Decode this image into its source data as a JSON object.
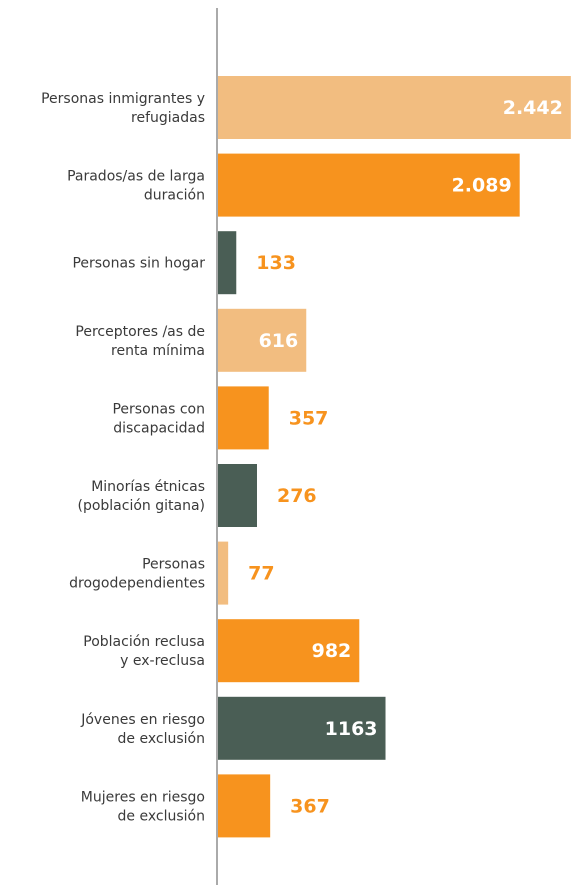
{
  "chart_data": {
    "type": "hbar",
    "categories": [
      [
        "Personas inmigrantes y",
        "refugiadas"
      ],
      [
        "Parados/as de larga",
        "duración"
      ],
      [
        "Personas sin hogar"
      ],
      [
        "Perceptores /as de",
        "renta mínima"
      ],
      [
        "Personas con",
        "discapacidad"
      ],
      [
        "Minorías étnicas",
        "(población gitana)"
      ],
      [
        "Personas",
        "drogodependientes"
      ],
      [
        "Población reclusa",
        "y ex-reclusa"
      ],
      [
        "Jóvenes en riesgo",
        "de exclusión"
      ],
      [
        "Mujeres en riesgo",
        "de exclusión"
      ]
    ],
    "values": [
      2442,
      2089,
      133,
      616,
      357,
      276,
      77,
      982,
      1163,
      367
    ],
    "value_labels": [
      "2.442",
      "2.089",
      "133",
      "616",
      "357",
      "276",
      "77",
      "982",
      "1163",
      "367"
    ],
    "colors": [
      "#f2bd80",
      "#f7931e",
      "#4a5e55",
      "#f2bd80",
      "#f7931e",
      "#4a5e55",
      "#f2bd80",
      "#f7931e",
      "#4a5e55",
      "#f7931e"
    ],
    "xlim": [
      0,
      2450
    ]
  }
}
